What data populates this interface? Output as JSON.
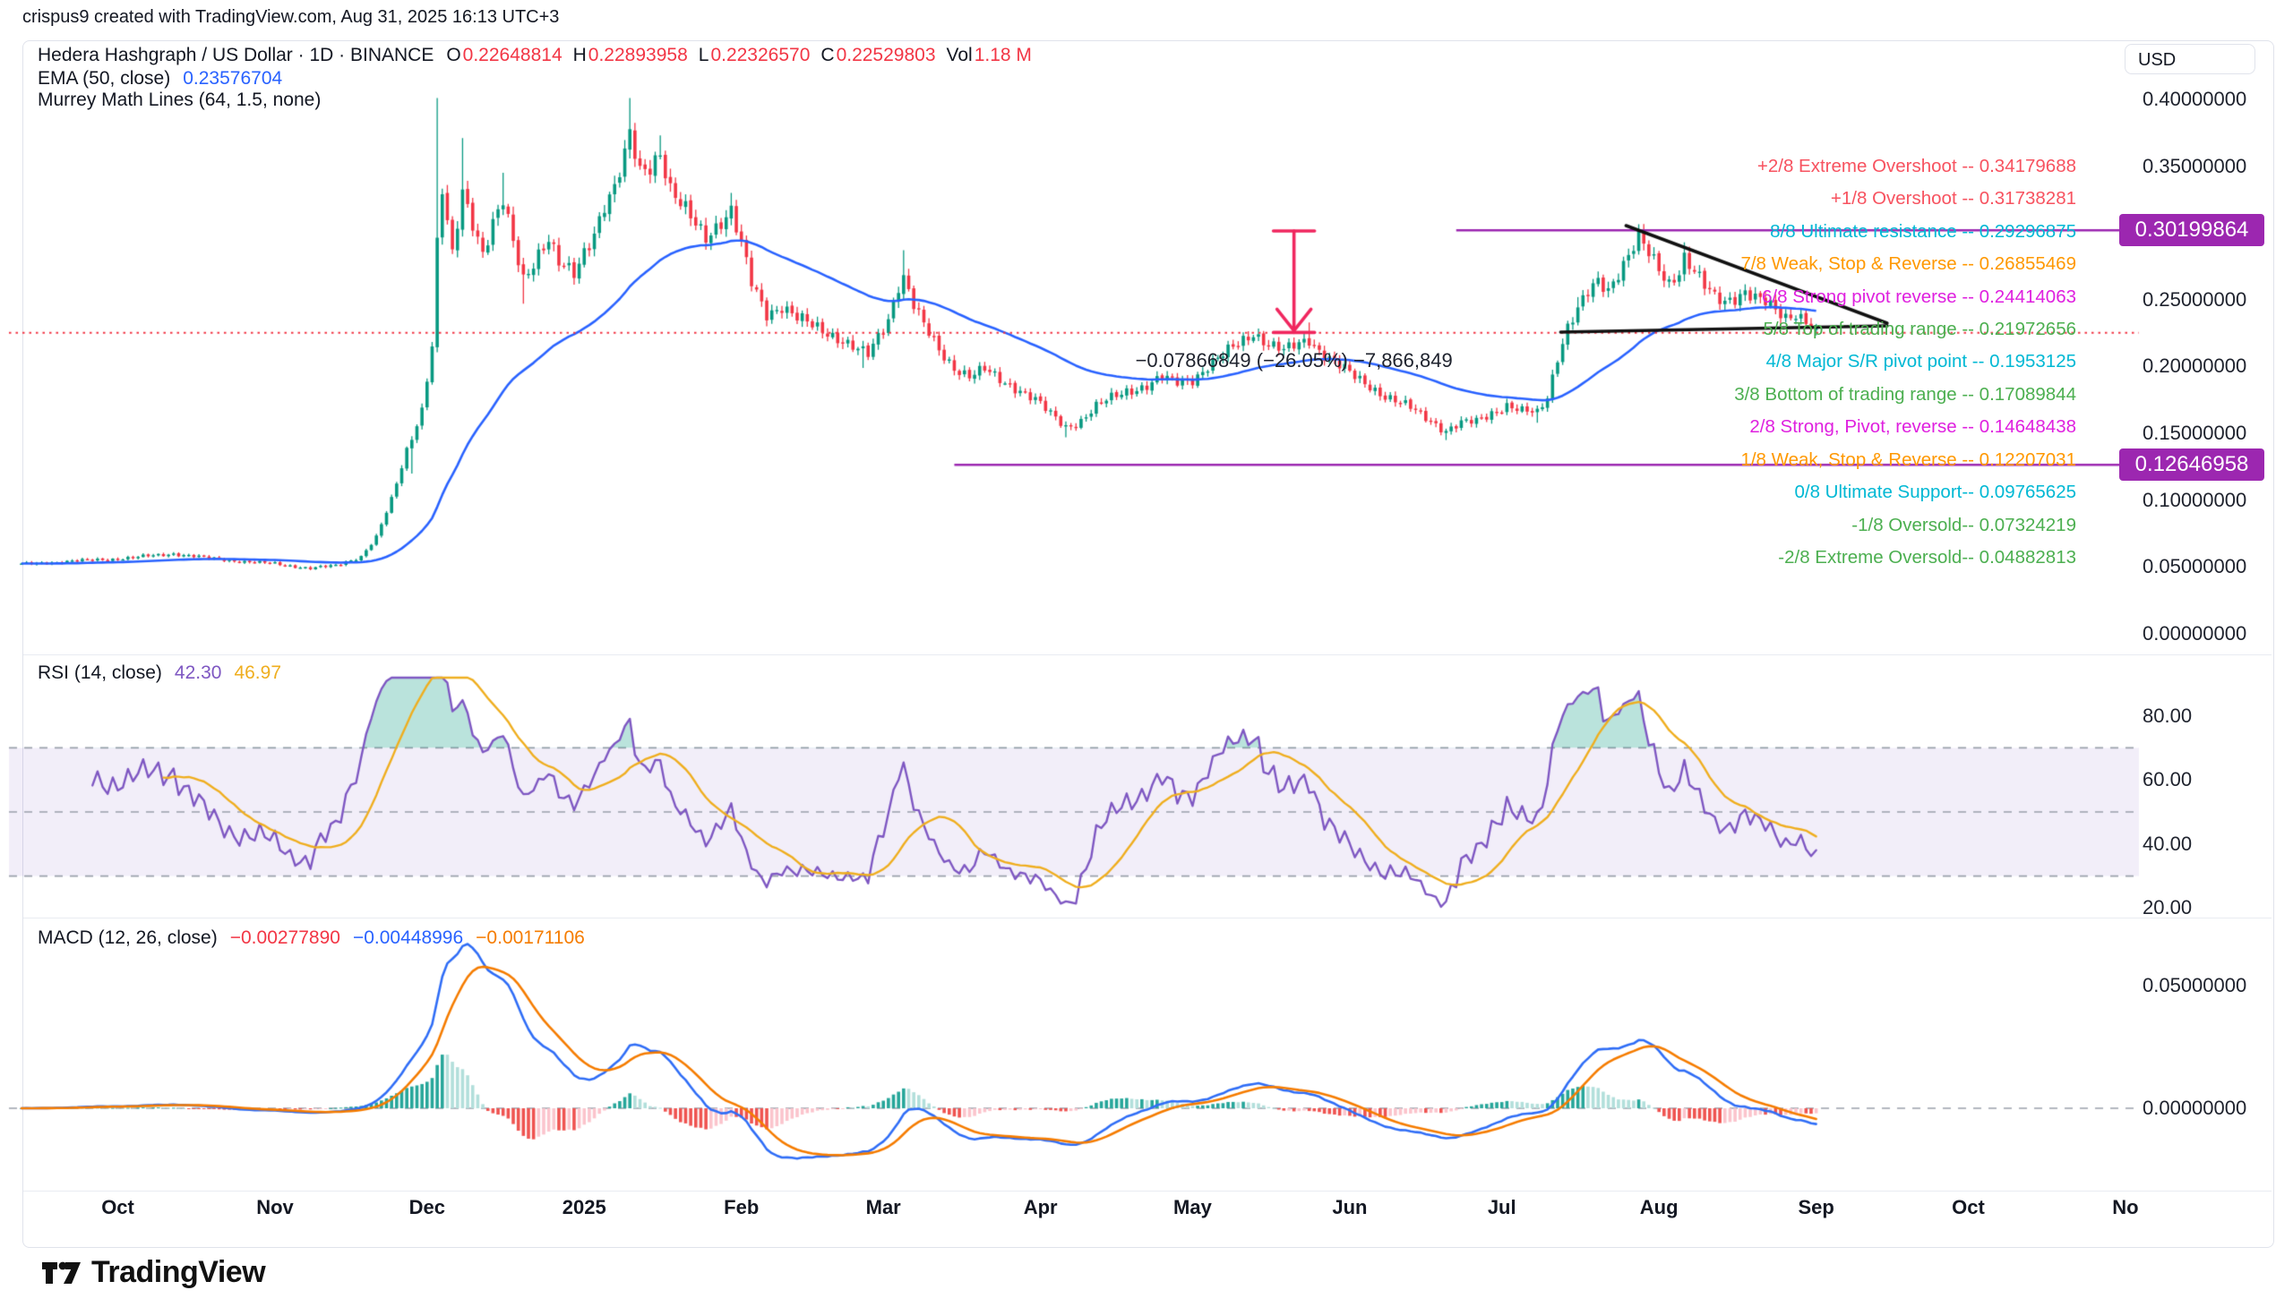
{
  "header": {
    "credit": "crispus9 created with TradingView.com, Aug 31, 2025 16:13 UTC+3"
  },
  "symbol": {
    "title": "Hedera Hashgraph / US Dollar · 1D · BINANCE",
    "legend": {
      "o": "O",
      "h": "H",
      "l": "L",
      "c": "C",
      "vol": "Vol"
    },
    "o": "0.22648814",
    "h": "0.22893958",
    "l": "0.22326570",
    "c": "0.22529803",
    "vol": "1.18 M"
  },
  "indicators": {
    "ema": {
      "label": "EMA (50, close)",
      "value": "0.23576704"
    },
    "murrey": {
      "label": "Murrey Math Lines (64, 1.5, none)"
    },
    "rsi": {
      "label": "RSI (14, close)",
      "value1": "42.30",
      "value2": "46.97"
    },
    "macd": {
      "label": "MACD (12, 26, close)",
      "hist": "−0.00277890",
      "macd": "−0.00448996",
      "signal": "−0.00171106"
    }
  },
  "axis": {
    "currency": "USD",
    "price_labels": [
      {
        "text": "0.40000000",
        "price": 0.4
      },
      {
        "text": "0.35000000",
        "price": 0.35
      },
      {
        "text": "0.25000000",
        "price": 0.25
      },
      {
        "text": "0.20000000",
        "price": 0.2
      },
      {
        "text": "0.15000000",
        "price": 0.15
      },
      {
        "text": "0.10000000",
        "price": 0.1
      },
      {
        "text": "0.05000000",
        "price": 0.05
      },
      {
        "text": "0.00000000",
        "price": 0.0
      }
    ],
    "badges": [
      {
        "text": "0.30199864",
        "price": 0.30199864,
        "color": "#9c27b0"
      },
      {
        "text": "0.12646958",
        "price": 0.12646958,
        "color": "#9c27b0"
      }
    ],
    "rsi_labels": [
      {
        "text": "80.00",
        "v": 80
      },
      {
        "text": "60.00",
        "v": 60
      },
      {
        "text": "40.00",
        "v": 40
      },
      {
        "text": "20.00",
        "v": 20
      }
    ],
    "macd_labels": [
      {
        "text": "0.05000000",
        "v": 0.05
      },
      {
        "text": "0.00000000",
        "v": 0.0
      }
    ],
    "months": [
      {
        "label": "Oct",
        "day": 19
      },
      {
        "label": "Nov",
        "day": 50
      },
      {
        "label": "Dec",
        "day": 80
      },
      {
        "label": "2025",
        "day": 111,
        "bold": true
      },
      {
        "label": "Feb",
        "day": 142
      },
      {
        "label": "Mar",
        "day": 170
      },
      {
        "label": "Apr",
        "day": 201
      },
      {
        "label": "May",
        "day": 231
      },
      {
        "label": "Jun",
        "day": 262
      },
      {
        "label": "Jul",
        "day": 292
      },
      {
        "label": "Aug",
        "day": 323
      },
      {
        "label": "Sep",
        "day": 354
      },
      {
        "label": "Oct",
        "day": 384
      },
      {
        "label": "No",
        "day": 415
      }
    ]
  },
  "murrey_levels": [
    {
      "label": "+2/8 Extreme Overshoot --  0.34179688",
      "value": 0.34179688,
      "color": "#f7525f"
    },
    {
      "label": "+1/8 Overshoot --  0.31738281",
      "value": 0.31738281,
      "color": "#f7525f"
    },
    {
      "label": "8/8 Ultimate resistance --  0.29296875",
      "value": 0.29296875,
      "color": "#00b8d4"
    },
    {
      "label": "7/8 Weak, Stop & Reverse --  0.26855469",
      "value": 0.26855469,
      "color": "#ff9800"
    },
    {
      "label": "6/8 Strong pivot reverse --  0.24414063",
      "value": 0.24414063,
      "color": "#df20df"
    },
    {
      "label": "5/8 Top of trading range --  0.21972656",
      "value": 0.21972656,
      "color": "#4caf50"
    },
    {
      "label": "4/8 Major S/R pivot point --  0.1953125",
      "value": 0.1953125,
      "color": "#00b8d4"
    },
    {
      "label": "3/8 Bottom of trading range --  0.17089844",
      "value": 0.17089844,
      "color": "#4caf50"
    },
    {
      "label": "2/8 Strong, Pivot, reverse --  0.14648438",
      "value": 0.14648438,
      "color": "#df20df"
    },
    {
      "label": "1/8 Weak, Stop & Reverse --  0.12207031",
      "value": 0.12207031,
      "color": "#ff9800"
    },
    {
      "label": "0/8 Ultimate Support--  0.09765625",
      "value": 0.09765625,
      "color": "#00b8d4"
    },
    {
      "label": "-1/8 Oversold--  0.07324219",
      "value": 0.07324219,
      "color": "#4caf50"
    },
    {
      "label": "-2/8 Extreme Oversold--  0.04882813",
      "value": 0.04882813,
      "color": "#4caf50"
    }
  ],
  "annotation": {
    "text": "−0.07866849 (−26.05%) −7,866,849",
    "day": 251,
    "price": 0.205
  },
  "footer": {
    "logo": "TradingView"
  },
  "chart_data": {
    "type": "candlestick",
    "title": "Hedera Hashgraph / US Dollar",
    "interval": "1D",
    "exchange": "BINANCE",
    "x_range": [
      "Sep 2024",
      "Nov 2025"
    ],
    "price_axis_range": [
      0.0,
      0.42
    ],
    "current_ohlc": {
      "open": 0.22648814,
      "high": 0.22893958,
      "low": 0.2232657,
      "close": 0.22529803,
      "volume": "1.18 M"
    },
    "days_total": 354,
    "close_keyframes": [
      [
        0,
        0.052
      ],
      [
        8,
        0.054
      ],
      [
        16,
        0.0555
      ],
      [
        22,
        0.057
      ],
      [
        30,
        0.06
      ],
      [
        36,
        0.057
      ],
      [
        44,
        0.054
      ],
      [
        50,
        0.0525
      ],
      [
        57,
        0.049
      ],
      [
        62,
        0.051
      ],
      [
        67,
        0.058
      ],
      [
        70,
        0.072
      ],
      [
        73,
        0.1
      ],
      [
        76,
        0.138
      ],
      [
        79,
        0.168
      ],
      [
        81,
        0.215
      ],
      [
        82,
        0.29
      ],
      [
        83,
        0.33
      ],
      [
        85,
        0.282
      ],
      [
        87,
        0.332
      ],
      [
        89,
        0.31
      ],
      [
        91,
        0.286
      ],
      [
        93,
        0.306
      ],
      [
        95,
        0.322
      ],
      [
        97,
        0.292
      ],
      [
        99,
        0.266
      ],
      [
        102,
        0.286
      ],
      [
        104,
        0.296
      ],
      [
        106,
        0.276
      ],
      [
        109,
        0.268
      ],
      [
        111,
        0.286
      ],
      [
        113,
        0.302
      ],
      [
        115,
        0.322
      ],
      [
        117,
        0.332
      ],
      [
        119,
        0.356
      ],
      [
        120,
        0.372
      ],
      [
        122,
        0.346
      ],
      [
        124,
        0.352
      ],
      [
        126,
        0.362
      ],
      [
        128,
        0.332
      ],
      [
        130,
        0.32
      ],
      [
        133,
        0.306
      ],
      [
        135,
        0.298
      ],
      [
        138,
        0.31
      ],
      [
        140,
        0.316
      ],
      [
        142,
        0.29
      ],
      [
        144,
        0.262
      ],
      [
        147,
        0.24
      ],
      [
        150,
        0.246
      ],
      [
        153,
        0.236
      ],
      [
        156,
        0.23
      ],
      [
        159,
        0.226
      ],
      [
        162,
        0.22
      ],
      [
        165,
        0.212
      ],
      [
        167,
        0.208
      ],
      [
        169,
        0.222
      ],
      [
        171,
        0.236
      ],
      [
        173,
        0.262
      ],
      [
        174,
        0.268
      ],
      [
        176,
        0.246
      ],
      [
        178,
        0.23
      ],
      [
        181,
        0.212
      ],
      [
        184,
        0.2
      ],
      [
        187,
        0.193
      ],
      [
        190,
        0.197
      ],
      [
        193,
        0.19
      ],
      [
        197,
        0.183
      ],
      [
        200,
        0.175
      ],
      [
        203,
        0.164
      ],
      [
        206,
        0.155
      ],
      [
        209,
        0.16
      ],
      [
        212,
        0.17
      ],
      [
        215,
        0.176
      ],
      [
        218,
        0.182
      ],
      [
        222,
        0.186
      ],
      [
        225,
        0.191
      ],
      [
        228,
        0.188
      ],
      [
        231,
        0.191
      ],
      [
        234,
        0.2
      ],
      [
        237,
        0.208
      ],
      [
        240,
        0.217
      ],
      [
        243,
        0.226
      ],
      [
        246,
        0.217
      ],
      [
        249,
        0.211
      ],
      [
        252,
        0.217
      ],
      [
        254,
        0.221
      ],
      [
        257,
        0.209
      ],
      [
        260,
        0.2
      ],
      [
        263,
        0.192
      ],
      [
        266,
        0.186
      ],
      [
        269,
        0.178
      ],
      [
        272,
        0.172
      ],
      [
        275,
        0.167
      ],
      [
        278,
        0.16
      ],
      [
        281,
        0.152
      ],
      [
        284,
        0.157
      ],
      [
        287,
        0.159
      ],
      [
        290,
        0.166
      ],
      [
        293,
        0.171
      ],
      [
        296,
        0.166
      ],
      [
        299,
        0.165
      ],
      [
        301,
        0.178
      ],
      [
        303,
        0.208
      ],
      [
        305,
        0.23
      ],
      [
        307,
        0.242
      ],
      [
        309,
        0.254
      ],
      [
        311,
        0.263
      ],
      [
        313,
        0.258
      ],
      [
        315,
        0.272
      ],
      [
        317,
        0.284
      ],
      [
        319,
        0.296
      ],
      [
        321,
        0.283
      ],
      [
        323,
        0.272
      ],
      [
        325,
        0.263
      ],
      [
        327,
        0.273
      ],
      [
        328,
        0.283
      ],
      [
        330,
        0.271
      ],
      [
        332,
        0.259
      ],
      [
        334,
        0.251
      ],
      [
        336,
        0.249
      ],
      [
        338,
        0.253
      ],
      [
        340,
        0.257
      ],
      [
        342,
        0.251
      ],
      [
        344,
        0.247
      ],
      [
        346,
        0.241
      ],
      [
        348,
        0.237
      ],
      [
        350,
        0.241
      ],
      [
        352,
        0.235
      ],
      [
        354,
        0.2253
      ]
    ],
    "wick_spikes_high": [
      [
        82,
        0.401
      ],
      [
        87,
        0.371
      ],
      [
        95,
        0.345
      ],
      [
        120,
        0.401
      ],
      [
        126,
        0.373
      ],
      [
        140,
        0.33
      ],
      [
        174,
        0.287
      ],
      [
        254,
        0.233
      ],
      [
        307,
        0.252
      ],
      [
        319,
        0.302
      ],
      [
        328,
        0.293
      ]
    ],
    "wick_spikes_low": [
      [
        77,
        0.12
      ],
      [
        99,
        0.247
      ],
      [
        166,
        0.199
      ],
      [
        206,
        0.147
      ],
      [
        281,
        0.145
      ],
      [
        299,
        0.158
      ]
    ],
    "overlays": {
      "ema_period": 50,
      "ema_color": "#2962ff",
      "up_color": "#089981",
      "down_color": "#f23645"
    },
    "rsi": {
      "period": 14,
      "ma_period": 14,
      "line_color": "#7e57c2",
      "ma_color": "#efae1f",
      "band": [
        30,
        70
      ],
      "mid": 50
    },
    "macd": {
      "fast": 12,
      "slow": 26,
      "signal": 9,
      "macd_color": "#2f6df6",
      "signal_color": "#f57c00",
      "hist_colors": {
        "up_grow": "#26a69a",
        "up_fall": "#b2dfdb",
        "down_grow": "#fbc4cc",
        "down_fall": "#ef5350"
      }
    },
    "drawings": {
      "price_line": {
        "price": 0.22529803,
        "color": "#f23645",
        "style": "dotted"
      },
      "purple_rays": [
        {
          "price": 0.30199864,
          "from_day": 283,
          "color": "#9c27b0"
        },
        {
          "price": 0.12646958,
          "from_day": 184,
          "color": "#9c27b0"
        }
      ],
      "trend_lines": [
        {
          "d1": 316.5,
          "p1": 0.3055,
          "d2": 368,
          "p2": 0.2325,
          "color": "#111111"
        },
        {
          "d1": 303.6,
          "p1": 0.2258,
          "d2": 368,
          "p2": 0.2305,
          "color": "#111111"
        }
      ],
      "measure_arrow": {
        "day": 251,
        "from_price": 0.3015,
        "to_price": 0.2255,
        "color": "#f0275f"
      }
    }
  }
}
